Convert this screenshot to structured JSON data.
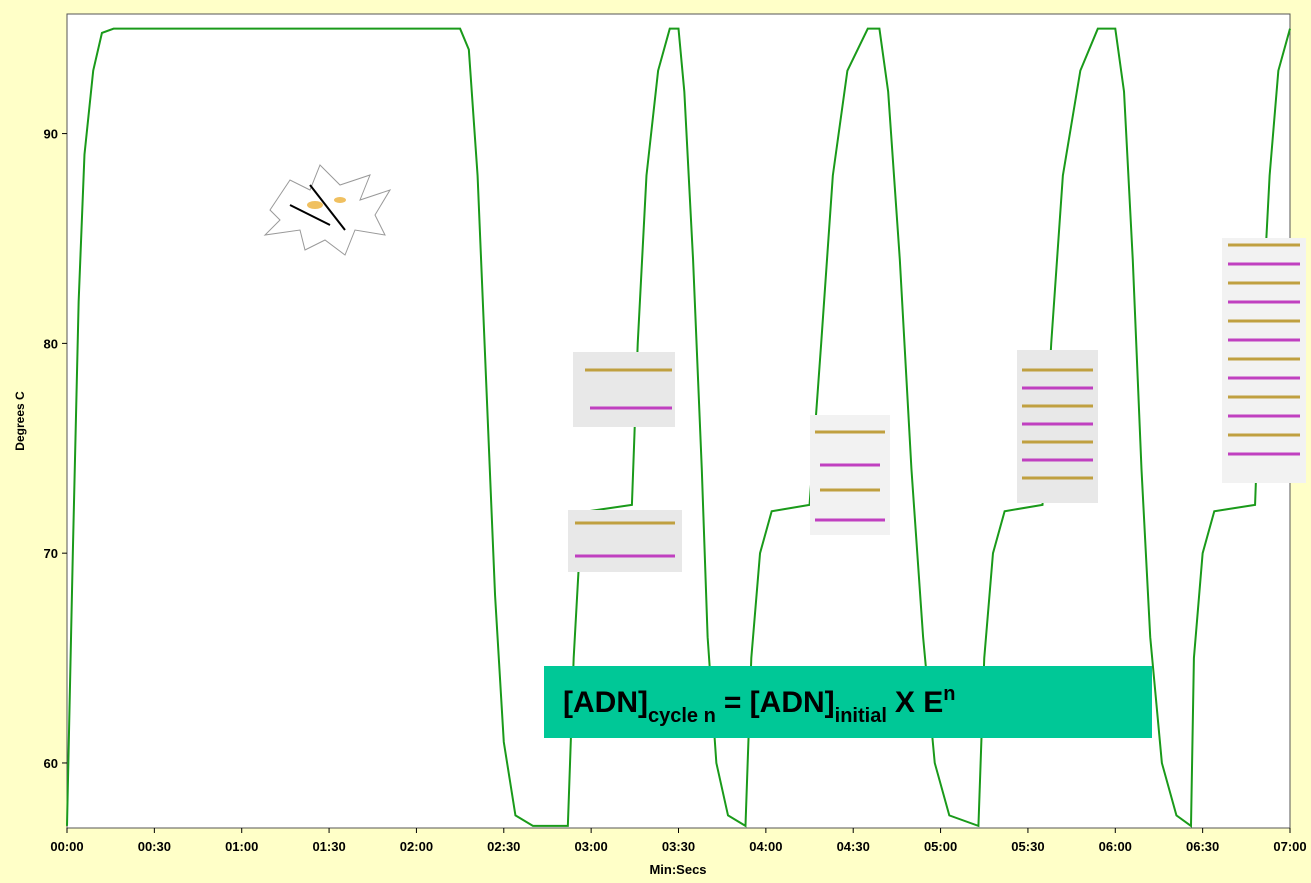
{
  "chart_data": {
    "type": "line",
    "x_label": "Min:Secs",
    "y_label": "Degrees C",
    "formula": {
      "lhs": "[ADN]",
      "lhs_sub": "cycle n",
      "eq": "= [ADN]",
      "rhs_sub": "initial",
      "rhs": "X E",
      "rhs_sup": "n"
    },
    "xlim": [
      0,
      420
    ],
    "ylim": [
      56.9,
      95.7
    ],
    "xticks": [
      {
        "value": 0,
        "label": "00:00"
      },
      {
        "value": 30,
        "label": "00:30"
      },
      {
        "value": 60,
        "label": "01:00"
      },
      {
        "value": 90,
        "label": "01:30"
      },
      {
        "value": 120,
        "label": "02:00"
      },
      {
        "value": 150,
        "label": "02:30"
      },
      {
        "value": 180,
        "label": "03:00"
      },
      {
        "value": 210,
        "label": "03:30"
      },
      {
        "value": 240,
        "label": "04:00"
      },
      {
        "value": 270,
        "label": "04:30"
      },
      {
        "value": 300,
        "label": "05:00"
      },
      {
        "value": 330,
        "label": "05:30"
      },
      {
        "value": 360,
        "label": "06:00"
      },
      {
        "value": 390,
        "label": "06:30"
      },
      {
        "value": 420,
        "label": "07:00"
      }
    ],
    "yticks": [
      60,
      70,
      80,
      90
    ],
    "x": [
      0,
      2,
      4,
      6,
      9,
      12,
      16,
      135,
      138,
      141,
      144,
      147,
      150,
      154,
      160,
      172,
      174,
      176,
      179,
      194,
      196,
      199,
      203,
      207,
      210,
      212,
      215,
      218,
      220,
      223,
      227,
      233,
      235,
      238,
      242,
      255,
      259,
      263,
      268,
      275,
      279,
      282,
      286,
      290,
      294,
      298,
      303,
      313,
      315,
      318,
      322,
      335,
      338,
      342,
      348,
      354,
      360,
      363,
      366,
      369,
      372,
      376,
      381,
      386,
      387,
      390,
      394,
      408,
      410,
      413,
      416,
      420
    ],
    "series": [
      {
        "color": "#1a9a1a",
        "values": [
          57,
          70,
          82,
          89,
          93,
          94.8,
          95,
          95,
          94,
          88,
          78,
          68,
          61,
          57.5,
          57,
          57,
          65,
          70,
          72,
          72.3,
          80,
          88,
          93,
          95,
          95,
          92,
          84,
          74,
          66,
          60,
          57.5,
          57,
          65,
          70,
          72,
          72.3,
          80,
          88,
          93,
          95,
          95,
          92,
          84,
          74,
          66,
          60,
          57.5,
          57,
          65,
          70,
          72,
          72.3,
          80,
          88,
          93,
          95,
          95,
          92,
          84,
          74,
          66,
          60,
          57.5,
          57,
          65,
          70,
          72,
          72.3,
          80,
          88,
          93,
          95
        ]
      }
    ]
  }
}
